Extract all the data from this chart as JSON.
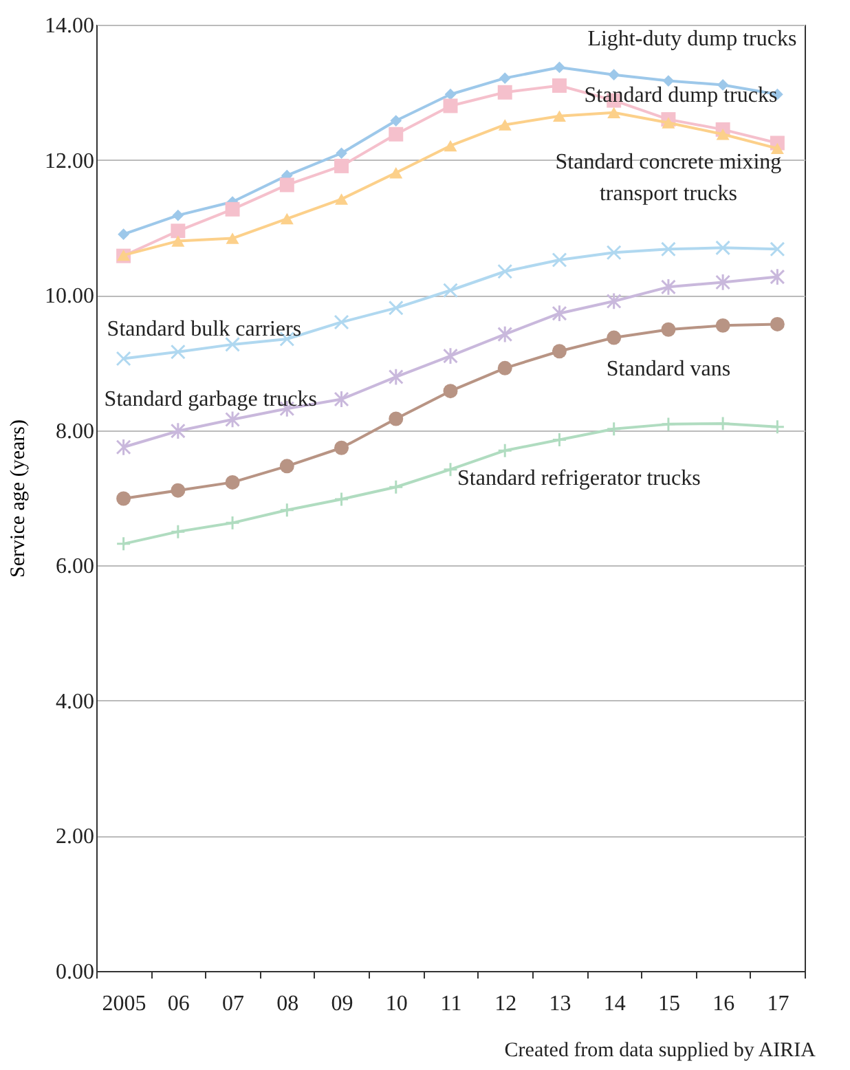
{
  "chart_data": {
    "type": "line",
    "ylabel": "Service age (years)",
    "categories": [
      "2005",
      "06",
      "07",
      "08",
      "09",
      "10",
      "11",
      "12",
      "13",
      "14",
      "15",
      "16",
      "17"
    ],
    "ylim": [
      0,
      14
    ],
    "yticks": [
      {
        "value": 0,
        "label": "0.00"
      },
      {
        "value": 2,
        "label": "2.00"
      },
      {
        "value": 4,
        "label": "4.00"
      },
      {
        "value": 6,
        "label": "6.00"
      },
      {
        "value": 8,
        "label": "8.00"
      },
      {
        "value": 10,
        "label": "10.00"
      },
      {
        "value": 12,
        "label": "12.00"
      },
      {
        "value": 14,
        "label": "14.00"
      }
    ],
    "grid": "y",
    "line_style": "solid",
    "annotations": [
      "Created from data supplied by AIRIA"
    ],
    "series": [
      {
        "name": "Light-duty dump trucks",
        "color": "#9dc8ea",
        "marker": "diamond",
        "values": [
          10.9,
          11.18,
          11.38,
          11.77,
          12.1,
          12.58,
          12.97,
          13.21,
          13.37,
          13.26,
          13.17,
          13.11,
          12.97
        ]
      },
      {
        "name": "Standard dump trucks",
        "color": "#f5c0cc",
        "marker": "square",
        "values": [
          10.58,
          10.95,
          11.27,
          11.63,
          11.91,
          12.38,
          12.8,
          13.0,
          13.1,
          12.88,
          12.6,
          12.45,
          12.25
        ]
      },
      {
        "name": "Standard concrete mixing transport trucks",
        "color": "#fcd08a",
        "marker": "triangle",
        "values": [
          10.59,
          10.8,
          10.84,
          11.13,
          11.42,
          11.81,
          12.21,
          12.52,
          12.65,
          12.7,
          12.55,
          12.38,
          12.17
        ]
      },
      {
        "name": "Standard bulk carriers",
        "color": "#b0d8f0",
        "marker": "x",
        "values": [
          9.06,
          9.16,
          9.27,
          9.35,
          9.6,
          9.81,
          10.07,
          10.35,
          10.52,
          10.63,
          10.68,
          10.7,
          10.68
        ]
      },
      {
        "name": "Standard garbage trucks",
        "color": "#c9b8dc",
        "marker": "cross",
        "values": [
          7.75,
          7.99,
          8.16,
          8.32,
          8.46,
          8.79,
          9.1,
          9.42,
          9.73,
          9.91,
          10.12,
          10.19,
          10.27
        ]
      },
      {
        "name": "Standard vans",
        "color": "#b89484",
        "marker": "circle",
        "values": [
          6.99,
          7.11,
          7.23,
          7.47,
          7.74,
          8.17,
          8.58,
          8.92,
          9.17,
          9.37,
          9.49,
          9.55,
          9.57
        ]
      },
      {
        "name": "Standard refrigerator trucks",
        "color": "#b0dcc0",
        "marker": "plus",
        "values": [
          6.32,
          6.5,
          6.63,
          6.82,
          6.98,
          7.16,
          7.42,
          7.7,
          7.86,
          8.02,
          8.09,
          8.1,
          8.05
        ]
      }
    ]
  }
}
